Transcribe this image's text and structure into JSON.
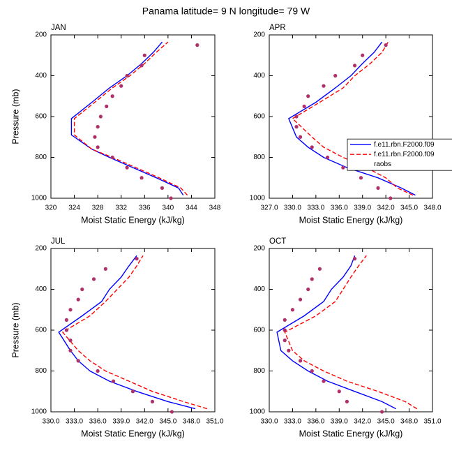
{
  "title": "Panama  latitude= 9 N longitude= 79 W",
  "chart_data": [
    {
      "type": "line",
      "title": "JAN",
      "xlabel": "Moist Static Energy (kJ/kg)",
      "ylabel": "Pressure (mb)",
      "xlim": [
        320,
        348
      ],
      "xticks": [
        320,
        324,
        328,
        332,
        336,
        340,
        344,
        348
      ],
      "ylim": [
        1000,
        200
      ],
      "yticks": [
        200,
        400,
        600,
        800,
        1000
      ],
      "series": [
        {
          "color": "#0000ff",
          "dash": false,
          "marker": false,
          "y": [
            985,
            950,
            900,
            850,
            800,
            760,
            690,
            610,
            530,
            460,
            400,
            340,
            285,
            235
          ],
          "values": [
            342.6,
            341.8,
            338,
            334,
            330,
            327,
            323.5,
            323.5,
            327,
            330,
            333,
            335.5,
            337.5,
            339
          ]
        },
        {
          "color": "#ff0000",
          "dash": true,
          "marker": false,
          "y": [
            985,
            950,
            900,
            850,
            800,
            760,
            690,
            610,
            530,
            460,
            400,
            340,
            285,
            235
          ],
          "values": [
            343.3,
            342.2,
            338.5,
            334.5,
            330.5,
            327,
            324,
            324,
            327.5,
            330.5,
            333.5,
            336,
            338,
            340
          ]
        },
        {
          "color": "#b0306a",
          "dash": false,
          "marker": true,
          "y": [
            1000,
            950,
            900,
            850,
            800,
            750,
            700,
            650,
            600,
            550,
            500,
            450,
            400,
            350,
            300,
            250
          ],
          "values": [
            340.5,
            339,
            335.5,
            333,
            330.5,
            328,
            327.5,
            328,
            328.5,
            329.5,
            330.5,
            332,
            333,
            335.5,
            336,
            345
          ]
        }
      ]
    },
    {
      "type": "line",
      "title": "APR",
      "xlabel": "Moist Static Energy (kJ/kg)",
      "legend": "right",
      "xlim": [
        327,
        348
      ],
      "xticks": [
        {
          "value": 327,
          "label": "327.0"
        },
        {
          "value": 330,
          "label": "330.0"
        },
        {
          "value": 333,
          "label": "333.0"
        },
        {
          "value": 336,
          "label": "336.0"
        },
        {
          "value": 339,
          "label": "339.0"
        },
        {
          "value": 342,
          "label": "342.0"
        },
        {
          "value": 345,
          "label": "345.0"
        },
        {
          "value": 348,
          "label": "348.0"
        }
      ],
      "ylim": [
        1000,
        200
      ],
      "yticks": [
        200,
        400,
        600,
        800,
        1000
      ],
      "series": [
        {
          "name": "f.e11.rbn.F2000.f09",
          "color": "#0000ff",
          "dash": false,
          "marker": false,
          "y": [
            985,
            950,
            900,
            850,
            800,
            750,
            700,
            610,
            530,
            460,
            400,
            340,
            285,
            235
          ],
          "values": [
            345.8,
            344,
            341,
            337,
            334,
            332,
            330.5,
            329.5,
            333,
            335.5,
            337.5,
            339,
            340.5,
            341.5
          ]
        },
        {
          "name": "f.e11.rbn.F2000.f09",
          "color": "#ff0000",
          "dash": true,
          "marker": false,
          "y": [
            985,
            950,
            900,
            850,
            800,
            750,
            700,
            610,
            530,
            460,
            400,
            340,
            285,
            235
          ],
          "values": [
            345.5,
            343.5,
            342,
            339.5,
            336.5,
            334,
            332.5,
            330,
            333.5,
            336.5,
            338,
            340,
            341.5,
            342.3
          ]
        },
        {
          "name": "raobs",
          "color": "#b0306a",
          "dash": false,
          "marker": true,
          "y": [
            1000,
            950,
            900,
            850,
            800,
            750,
            700,
            650,
            600,
            550,
            500,
            450,
            400,
            350,
            300,
            250
          ],
          "values": [
            342.6,
            341,
            338.8,
            336.5,
            334.5,
            332.5,
            331,
            330.5,
            330.5,
            331.5,
            332,
            334,
            335.5,
            338,
            339,
            342
          ]
        }
      ]
    },
    {
      "type": "line",
      "title": "JUL",
      "xlabel": "Moist Static Energy (kJ/kg)",
      "ylabel": "Pressure (mb)",
      "xlim": [
        330,
        351
      ],
      "xticks": [
        {
          "value": 330,
          "label": "330.0"
        },
        {
          "value": 333,
          "label": "333.0"
        },
        {
          "value": 336,
          "label": "336.0"
        },
        {
          "value": 339,
          "label": "339.0"
        },
        {
          "value": 342,
          "label": "342.0"
        },
        {
          "value": 345,
          "label": "345.0"
        },
        {
          "value": 348,
          "label": "348.0"
        },
        {
          "value": 351,
          "label": "351.0"
        }
      ],
      "ylim": [
        1000,
        200
      ],
      "yticks": [
        200,
        400,
        600,
        800,
        1000
      ],
      "series": [
        {
          "color": "#0000ff",
          "dash": false,
          "marker": false,
          "y": [
            985,
            950,
            900,
            850,
            800,
            750,
            700,
            610,
            530,
            460,
            400,
            340,
            285,
            235
          ],
          "values": [
            348.5,
            345,
            341,
            337.5,
            335,
            333.5,
            332.5,
            331,
            334,
            336.5,
            337.5,
            339,
            340,
            341
          ]
        },
        {
          "color": "#ff0000",
          "dash": true,
          "marker": false,
          "y": [
            985,
            950,
            900,
            850,
            800,
            750,
            700,
            610,
            530,
            460,
            400,
            340,
            285,
            235
          ],
          "values": [
            350,
            347,
            343,
            340,
            337,
            335,
            333.5,
            331.5,
            335,
            337,
            338.5,
            340,
            341,
            341.8
          ]
        },
        {
          "color": "#b0306a",
          "dash": false,
          "marker": true,
          "y": [
            1000,
            950,
            900,
            850,
            800,
            750,
            700,
            650,
            600,
            550,
            500,
            450,
            400,
            350,
            300,
            250
          ],
          "values": [
            345.5,
            343,
            340.5,
            338,
            336,
            333.5,
            332.5,
            332.5,
            332,
            332,
            332.5,
            333.5,
            334,
            335.5,
            337,
            341
          ]
        }
      ]
    },
    {
      "type": "line",
      "title": "OCT",
      "xlabel": "Moist Static Energy (kJ/kg)",
      "xlim": [
        330,
        351
      ],
      "xticks": [
        {
          "value": 330,
          "label": "330.0"
        },
        {
          "value": 333,
          "label": "333.0"
        },
        {
          "value": 336,
          "label": "336.0"
        },
        {
          "value": 339,
          "label": "339.0"
        },
        {
          "value": 342,
          "label": "342.0"
        },
        {
          "value": 345,
          "label": "345.0"
        },
        {
          "value": 348,
          "label": "348.0"
        },
        {
          "value": 351,
          "label": "351.0"
        }
      ],
      "ylim": [
        1000,
        200
      ],
      "yticks": [
        200,
        400,
        600,
        800,
        1000
      ],
      "series": [
        {
          "color": "#0000ff",
          "dash": false,
          "marker": false,
          "y": [
            985,
            950,
            900,
            850,
            800,
            750,
            700,
            610,
            530,
            460,
            400,
            340,
            285,
            235
          ],
          "values": [
            346.3,
            344.5,
            341,
            337.5,
            335,
            333,
            331.5,
            331,
            334.5,
            337,
            338,
            339.5,
            340.5,
            341
          ]
        },
        {
          "color": "#ff0000",
          "dash": true,
          "marker": false,
          "y": [
            985,
            950,
            900,
            850,
            800,
            750,
            700,
            610,
            530,
            460,
            400,
            340,
            285,
            235
          ],
          "values": [
            349,
            347.5,
            344,
            340,
            337,
            334.5,
            333,
            332,
            336,
            338.5,
            339.5,
            340.5,
            341.5,
            342.5
          ]
        },
        {
          "color": "#b0306a",
          "dash": false,
          "marker": true,
          "y": [
            1000,
            950,
            900,
            850,
            800,
            750,
            700,
            650,
            600,
            550,
            500,
            450,
            400,
            350,
            300,
            250
          ],
          "values": [
            344.5,
            340,
            339,
            337,
            335.5,
            334,
            332.5,
            332,
            332,
            332,
            333,
            334,
            335,
            335.5,
            336.5,
            341
          ]
        }
      ]
    }
  ]
}
